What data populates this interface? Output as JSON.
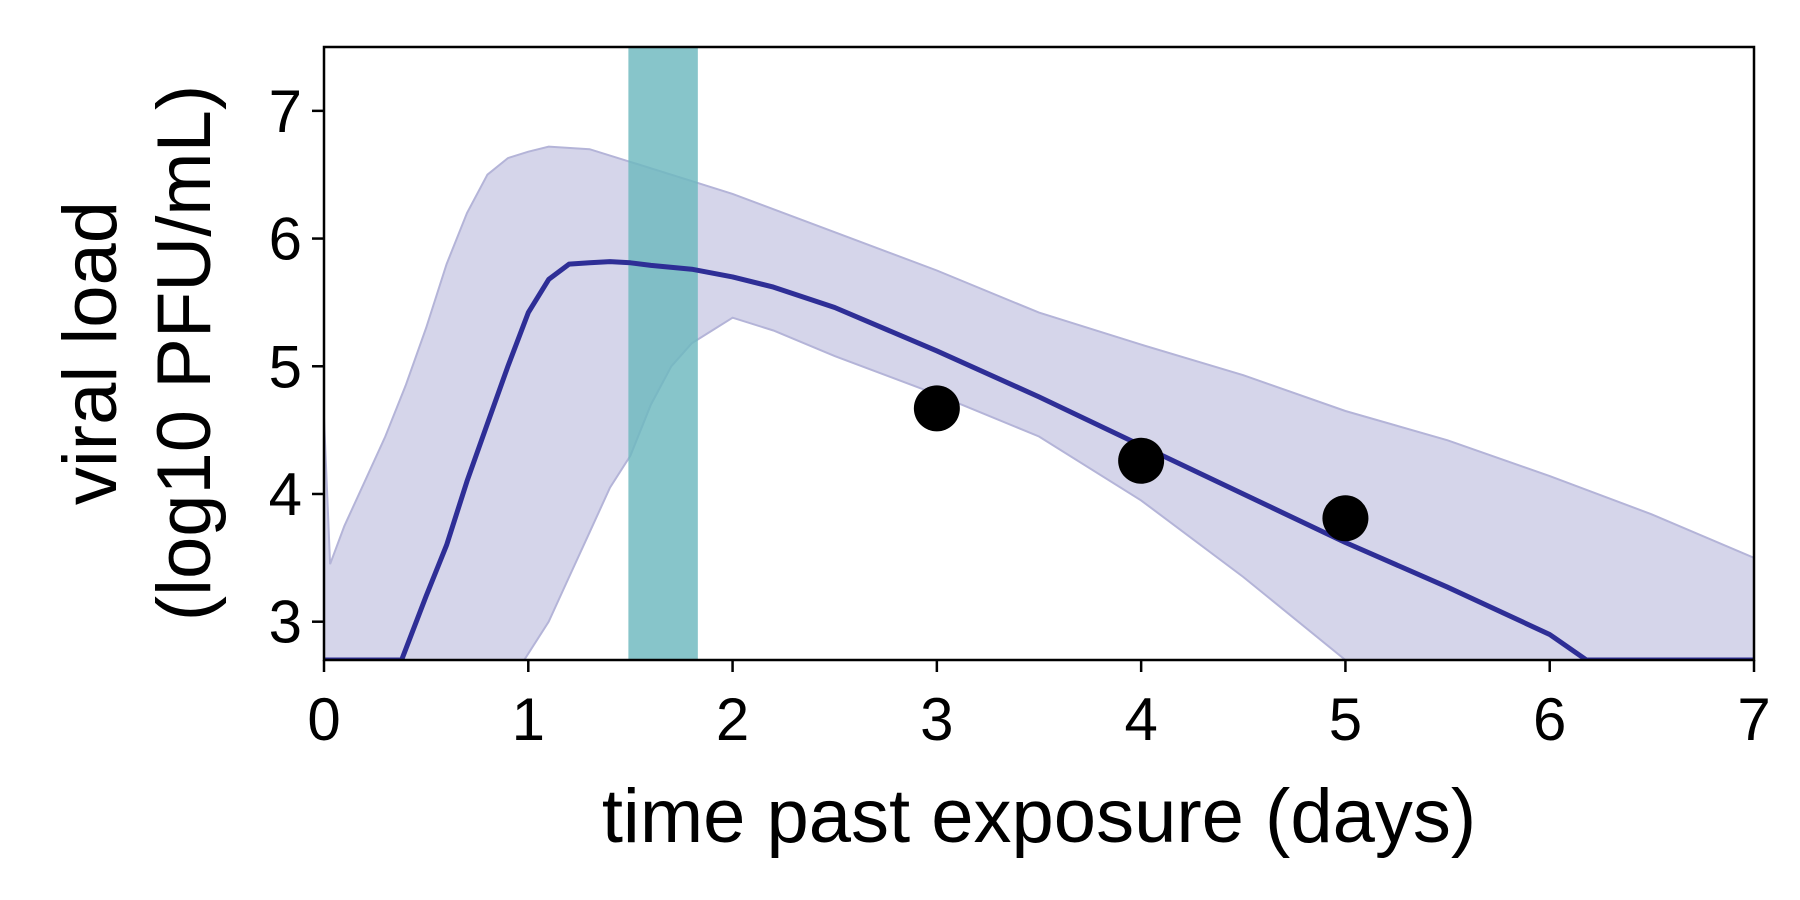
{
  "chart_data": {
    "type": "line",
    "xlabel": "time past exposure (days)",
    "ylabel_line1": "viral load",
    "ylabel_line2": "(log10 PFU/mL)",
    "xlim": [
      0,
      7
    ],
    "ylim": [
      2.7,
      7.5
    ],
    "x_ticks": [
      "0",
      "1",
      "2",
      "3",
      "4",
      "5",
      "6",
      "7"
    ],
    "y_ticks": [
      "3",
      "4",
      "5",
      "6",
      "7"
    ],
    "grid": false,
    "legend": "none",
    "colors": {
      "median_line": "#2e2e96",
      "band_fill": "#d5d5ea",
      "band_stroke": "#b4b4d8",
      "window_fill": "#6cb8be",
      "points": "#000000"
    },
    "highlight_window": {
      "x0": 1.49,
      "x1": 1.83
    },
    "median": [
      [
        0,
        2.7
      ],
      [
        0.38,
        2.7
      ],
      [
        0.5,
        3.2
      ],
      [
        0.6,
        3.6
      ],
      [
        0.7,
        4.1
      ],
      [
        0.8,
        4.55
      ],
      [
        0.9,
        5.0
      ],
      [
        1.0,
        5.42
      ],
      [
        1.1,
        5.68
      ],
      [
        1.2,
        5.8
      ],
      [
        1.3,
        5.81
      ],
      [
        1.4,
        5.82
      ],
      [
        1.5,
        5.81
      ],
      [
        1.6,
        5.79
      ],
      [
        1.8,
        5.76
      ],
      [
        2.0,
        5.7
      ],
      [
        2.2,
        5.62
      ],
      [
        2.5,
        5.46
      ],
      [
        3.0,
        5.12
      ],
      [
        3.5,
        4.76
      ],
      [
        4.0,
        4.38
      ],
      [
        4.5,
        4.0
      ],
      [
        5.0,
        3.62
      ],
      [
        5.5,
        3.27
      ],
      [
        6.0,
        2.9
      ],
      [
        6.18,
        2.7
      ],
      [
        7.0,
        2.7
      ]
    ],
    "band_upper": [
      [
        0,
        4.6
      ],
      [
        0.03,
        3.45
      ],
      [
        0.1,
        3.75
      ],
      [
        0.2,
        4.1
      ],
      [
        0.3,
        4.45
      ],
      [
        0.4,
        4.85
      ],
      [
        0.5,
        5.3
      ],
      [
        0.6,
        5.8
      ],
      [
        0.7,
        6.2
      ],
      [
        0.8,
        6.5
      ],
      [
        0.9,
        6.63
      ],
      [
        1.0,
        6.68
      ],
      [
        1.1,
        6.72
      ],
      [
        1.3,
        6.7
      ],
      [
        1.5,
        6.6
      ],
      [
        1.8,
        6.45
      ],
      [
        2.0,
        6.35
      ],
      [
        2.5,
        6.05
      ],
      [
        3.0,
        5.75
      ],
      [
        3.5,
        5.42
      ],
      [
        4.0,
        5.17
      ],
      [
        4.5,
        4.93
      ],
      [
        5.0,
        4.65
      ],
      [
        5.5,
        4.42
      ],
      [
        6.0,
        4.14
      ],
      [
        6.5,
        3.84
      ],
      [
        7.0,
        3.5
      ]
    ],
    "band_lower": [
      [
        0,
        2.7
      ],
      [
        0.98,
        2.7
      ],
      [
        1.1,
        3.0
      ],
      [
        1.2,
        3.35
      ],
      [
        1.3,
        3.7
      ],
      [
        1.4,
        4.05
      ],
      [
        1.5,
        4.3
      ],
      [
        1.6,
        4.7
      ],
      [
        1.7,
        5.0
      ],
      [
        1.8,
        5.18
      ],
      [
        1.9,
        5.28
      ],
      [
        2.0,
        5.38
      ],
      [
        2.2,
        5.28
      ],
      [
        2.5,
        5.08
      ],
      [
        3.0,
        4.78
      ],
      [
        3.5,
        4.45
      ],
      [
        4.0,
        3.95
      ],
      [
        4.5,
        3.35
      ],
      [
        5.0,
        2.7
      ],
      [
        7.0,
        2.7
      ]
    ],
    "observations": [
      {
        "x": 3,
        "y": 4.67
      },
      {
        "x": 4,
        "y": 4.26
      },
      {
        "x": 5,
        "y": 3.81
      }
    ]
  }
}
